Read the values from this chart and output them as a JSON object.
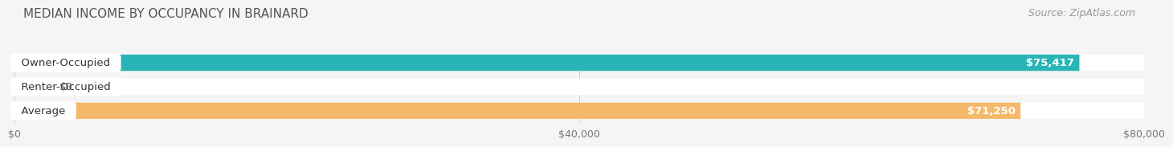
{
  "title": "MEDIAN INCOME BY OCCUPANCY IN BRAINARD",
  "source": "Source: ZipAtlas.com",
  "categories": [
    "Owner-Occupied",
    "Renter-Occupied",
    "Average"
  ],
  "values": [
    75417,
    0,
    71250
  ],
  "value_labels": [
    "$75,417",
    "$0",
    "$71,250"
  ],
  "bar_colors": [
    "#29b5b5",
    "#c9aad4",
    "#f5b96a"
  ],
  "background_color": "#f5f5f5",
  "bar_bg_color": "#e8e8e8",
  "xlim": [
    0,
    80000
  ],
  "xticks": [
    0,
    40000,
    80000
  ],
  "xtick_labels": [
    "$0",
    "$40,000",
    "$80,000"
  ],
  "bar_height": 0.68,
  "renter_bar_width": 2400,
  "label_fontsize": 9.5,
  "title_fontsize": 11,
  "source_fontsize": 9
}
